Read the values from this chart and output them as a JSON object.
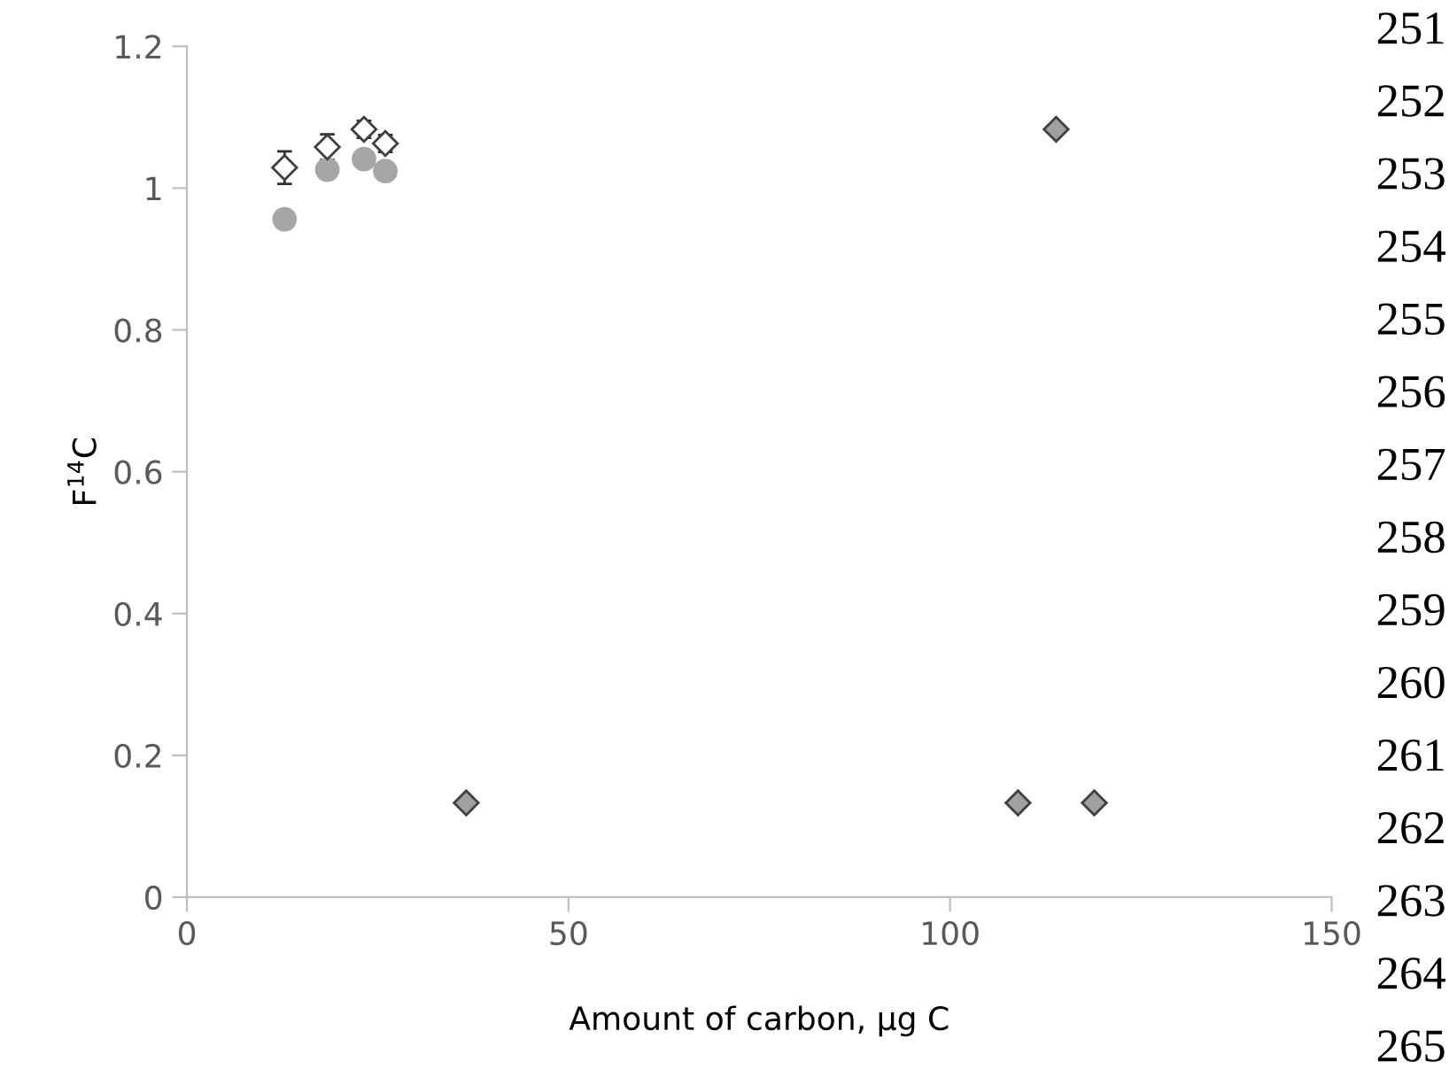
{
  "chart_data": {
    "type": "scatter",
    "xlabel": "Amount of carbon, μg C",
    "ylabel": "F$^{14}$C",
    "xlim": [
      0,
      150
    ],
    "xticks": [
      0,
      50,
      100,
      150
    ],
    "ylim": [
      0,
      1.2
    ],
    "yticks": [
      0,
      {
        "value": 0.2,
        "label": "0.2"
      },
      {
        "value": 0.4,
        "label": "0.4"
      },
      {
        "value": 0.6,
        "label": "0.6"
      },
      {
        "value": 0.8,
        "label": "0.8"
      },
      1,
      {
        "value": 1.2,
        "label": "1.2"
      }
    ],
    "grid": false,
    "legend": false,
    "series": [
      {
        "color": "#a6a6a6",
        "marker": "circle",
        "x": [
          12.8,
          18.4,
          23.2,
          26.0
        ],
        "values": [
          0.956,
          1.026,
          1.041,
          1.024
        ]
      },
      {
        "color": "#ffffff",
        "marker": "diamond",
        "x": [
          12.8,
          18.4,
          23.2,
          26.0
        ],
        "values": [
          1.029,
          1.058,
          1.083,
          1.063
        ],
        "errors": [
          0.023,
          0.018,
          0.012,
          0.012
        ]
      },
      {
        "color": "#a0a0a0",
        "marker": "diamond",
        "x": [
          36.6,
          108.9,
          113.9,
          118.9
        ],
        "values": [
          0.133,
          0.133,
          1.083,
          0.133
        ]
      }
    ],
    "annotations": [
      "251",
      "252",
      "253",
      "254",
      "255",
      "256",
      "257",
      "258",
      "259",
      "260",
      "261",
      "262",
      "263",
      "264",
      "265"
    ]
  }
}
